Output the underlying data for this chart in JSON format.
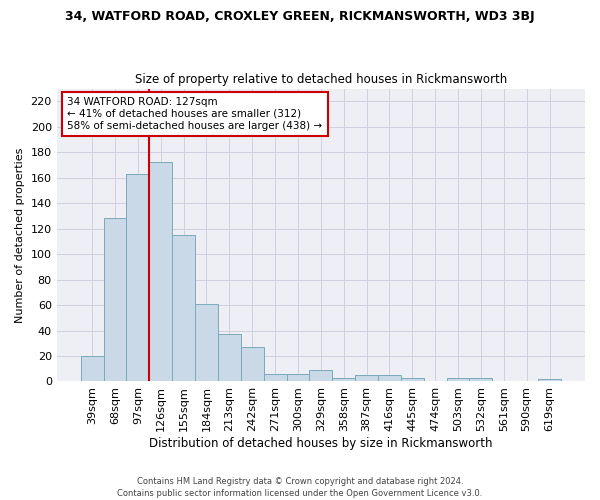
{
  "title1": "34, WATFORD ROAD, CROXLEY GREEN, RICKMANSWORTH, WD3 3BJ",
  "title2": "Size of property relative to detached houses in Rickmansworth",
  "xlabel": "Distribution of detached houses by size in Rickmansworth",
  "ylabel": "Number of detached properties",
  "categories": [
    "39sqm",
    "68sqm",
    "97sqm",
    "126sqm",
    "155sqm",
    "184sqm",
    "213sqm",
    "242sqm",
    "271sqm",
    "300sqm",
    "329sqm",
    "358sqm",
    "387sqm",
    "416sqm",
    "445sqm",
    "474sqm",
    "503sqm",
    "532sqm",
    "561sqm",
    "590sqm",
    "619sqm"
  ],
  "values": [
    20,
    128,
    163,
    172,
    115,
    61,
    37,
    27,
    6,
    6,
    9,
    3,
    5,
    5,
    3,
    0,
    3,
    3,
    0,
    0,
    2
  ],
  "bar_color": "#c9d9e8",
  "bar_edge_color": "#7aaabb",
  "grid_color": "#d0d0e0",
  "background_color": "#eeeef5",
  "vline_color": "#cc0000",
  "annotation_text": "34 WATFORD ROAD: 127sqm\n← 41% of detached houses are smaller (312)\n58% of semi-detached houses are larger (438) →",
  "annotation_box_color": "#ffffff",
  "annotation_border_color": "#cc0000",
  "footer1": "Contains HM Land Registry data © Crown copyright and database right 2024.",
  "footer2": "Contains public sector information licensed under the Open Government Licence v3.0.",
  "ylim": [
    0,
    230
  ],
  "yticks": [
    0,
    20,
    40,
    60,
    80,
    100,
    120,
    140,
    160,
    180,
    200,
    220
  ]
}
